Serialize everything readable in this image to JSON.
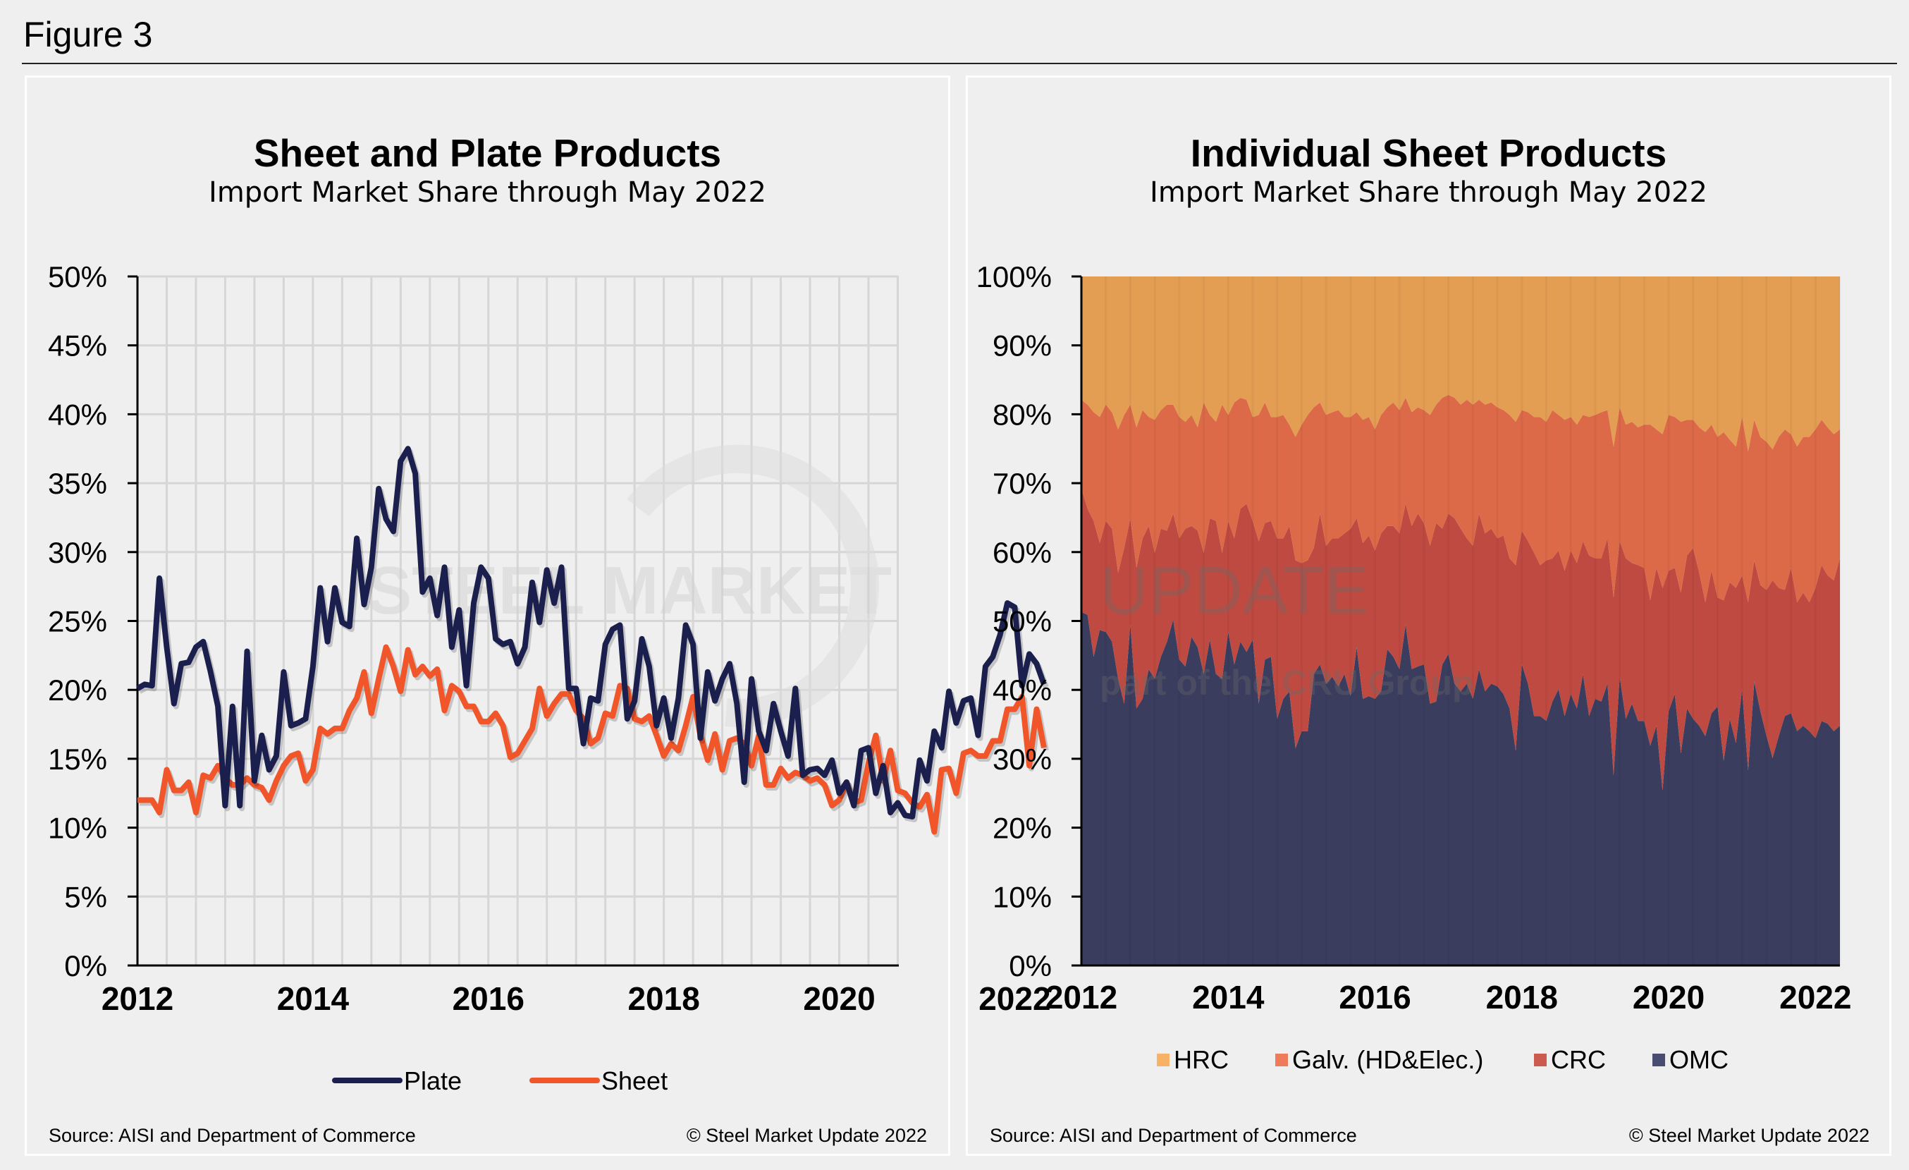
{
  "figure_title": "Figure 3",
  "watermark": {
    "main": "STEEL MARKET UPDATE",
    "sub": "part of the CRU Group"
  },
  "colors": {
    "plate": "#1b1f4d",
    "sheet": "#f0562a",
    "HRC": "#e49e53",
    "Galv": "#dc6a48",
    "CRC": "#bf4a41",
    "OMC": "#3b3d5f",
    "HRC_legend": "#f7b266",
    "Galv_legend": "#ee7c5a",
    "CRC_legend": "#cd5a4e",
    "OMC_legend": "#4a4d72"
  },
  "left_panel": {
    "source": "Source: AISI and Department of Commerce",
    "copyright": "© Steel Market Update 2022"
  },
  "right_panel": {
    "source": "Source: AISI and Department of Commerce",
    "copyright": "© Steel Market Update 2022"
  },
  "chart_data": [
    {
      "type": "line",
      "title": "Sheet and Plate Products",
      "subtitle": "Import Market Share through May 2022",
      "x_start": "2012-01",
      "x_end": "2022-05",
      "x_frequency": "monthly",
      "x_tick_labels": [
        "2012",
        "2014",
        "2016",
        "2018",
        "2020",
        "2022"
      ],
      "y_tick_labels": [
        "0%",
        "5%",
        "10%",
        "15%",
        "20%",
        "25%",
        "30%",
        "35%",
        "40%",
        "45%",
        "50%"
      ],
      "ylim": [
        0,
        50
      ],
      "y_unit": "%",
      "grid": "on",
      "legend": "bottom",
      "series": [
        {
          "name": "Plate",
          "values": [
            20.1,
            20.4,
            20.3,
            28.1,
            23.1,
            19,
            21.9,
            22,
            23.1,
            23.5,
            21.3,
            18.8,
            11.6,
            18.8,
            11.6,
            22.8,
            13.4,
            16.7,
            14.2,
            15.2,
            21.3,
            17.4,
            17.6,
            17.9,
            21.7,
            27.4,
            23.5,
            27.4,
            24.9,
            24.6,
            31,
            26.2,
            28.9,
            34.6,
            32.4,
            31.5,
            36.6,
            37.5,
            35.7,
            27.1,
            28.1,
            25.4,
            28.9,
            23.1,
            25.8,
            20.3,
            26.3,
            28.9,
            28.1,
            23.7,
            23.3,
            23.5,
            21.9,
            23.1,
            27.8,
            24.9,
            28.7,
            26.3,
            28.9,
            20.1,
            20.1,
            16.1,
            19.4,
            19.2,
            23.3,
            24.4,
            24.7,
            17.9,
            19.2,
            23.7,
            21.7,
            17.4,
            19.4,
            16.5,
            19.4,
            24.7,
            23.3,
            16.5,
            21.3,
            19.2,
            20.8,
            21.9,
            19,
            13.3,
            20.8,
            17,
            15.6,
            19,
            17,
            15.2,
            20.1,
            13.8,
            14.2,
            14.3,
            13.8,
            14.9,
            12.5,
            13.3,
            11.6,
            15.6,
            15.8,
            12.5,
            14.5,
            11.1,
            11.8,
            10.9,
            10.8,
            14.9,
            13.4,
            17,
            15.8,
            19.9,
            17.6,
            19.2,
            19.4,
            16.7,
            21.7,
            22.4,
            24,
            26.3,
            26,
            20.3,
            22.6,
            21.9,
            20.4
          ]
        },
        {
          "name": "Sheet",
          "values": [
            12,
            12,
            12,
            11.1,
            14.2,
            12.7,
            12.7,
            13.3,
            11.1,
            13.8,
            13.6,
            14.5,
            13.6,
            13.1,
            13.1,
            13.6,
            13.1,
            12.9,
            12,
            13.4,
            14.5,
            15.2,
            15.4,
            13.4,
            14.2,
            17.2,
            16.8,
            17.2,
            17.2,
            18.5,
            19.4,
            21.3,
            18.3,
            20.8,
            23.1,
            21.7,
            19.9,
            22.9,
            21.1,
            21.7,
            21,
            21.5,
            18.5,
            20.3,
            19.9,
            18.8,
            18.8,
            17.7,
            17.7,
            18.3,
            17.4,
            15.1,
            15.4,
            16.3,
            17.2,
            20.1,
            18.1,
            19,
            19.7,
            19.7,
            18.5,
            17.9,
            16.1,
            16.5,
            18.3,
            18.1,
            20.3,
            20.1,
            17.9,
            17.7,
            18.1,
            16.7,
            15.2,
            16.1,
            15.6,
            17.4,
            19.5,
            16.7,
            14.9,
            16.8,
            14.2,
            16.3,
            16.5,
            16.1,
            14.5,
            16.7,
            13.1,
            13.1,
            14.3,
            13.6,
            14,
            13.8,
            13.4,
            13.6,
            13.1,
            11.6,
            12,
            13.3,
            11.8,
            12,
            14.7,
            16.7,
            13.4,
            15.6,
            12.7,
            12.5,
            11.8,
            11.5,
            12.4,
            9.7,
            14.2,
            14.3,
            12.5,
            15.4,
            15.6,
            15.2,
            15.2,
            16.3,
            16.3,
            18.6,
            18.6,
            19.5,
            14.5,
            18.6,
            15.8
          ]
        }
      ]
    },
    {
      "type": "area",
      "stacked": true,
      "title": "Individual Sheet Products",
      "subtitle": "Import Market Share through May 2022",
      "x_start": "2012-01",
      "x_end": "2022-05",
      "x_frequency": "monthly",
      "x_tick_labels": [
        "2012",
        "2014",
        "2016",
        "2018",
        "2020",
        "2022"
      ],
      "y_tick_labels": [
        "0%",
        "10%",
        "20%",
        "30%",
        "40%",
        "50%",
        "60%",
        "70%",
        "80%",
        "90%",
        "100%"
      ],
      "ylim": [
        0,
        100
      ],
      "y_unit": "%",
      "legend": "bottom",
      "legend_order": [
        "HRC",
        "Galv. (HD&Elec.)",
        "CRC",
        "OMC"
      ],
      "series": [
        {
          "name": "OMC",
          "values": [
            51.3,
            50.9,
            44.8,
            48.7,
            48.4,
            47,
            41.6,
            38,
            49.5,
            37.3,
            38.7,
            43,
            41.6,
            44.8,
            47,
            50.2,
            44.4,
            43.4,
            47.7,
            46.2,
            42.3,
            47.3,
            42.3,
            41.6,
            48.4,
            43.7,
            47,
            45.5,
            47.3,
            38,
            44.4,
            44.8,
            35.8,
            38.7,
            39.8,
            31.5,
            34,
            34,
            42.3,
            43.7,
            40.9,
            41.9,
            40.5,
            42.3,
            39.1,
            46.2,
            38.7,
            39.1,
            38.7,
            39.8,
            45.9,
            44.8,
            43,
            49.5,
            43,
            43.4,
            43.7,
            38,
            38.3,
            43.7,
            45.2,
            40.9,
            39.8,
            40.9,
            38.7,
            43,
            39.8,
            40.9,
            40.5,
            39.4,
            37.3,
            31.2,
            43.7,
            40.9,
            36.2,
            36.2,
            35.5,
            38.3,
            40.1,
            36.2,
            39.4,
            37.3,
            42.3,
            36.2,
            38.7,
            38.3,
            40.9,
            27.6,
            41.9,
            35.8,
            38,
            35.5,
            35.5,
            31.9,
            34.8,
            25.4,
            36.9,
            39.4,
            30.8,
            37.3,
            35.8,
            34.8,
            33.3,
            36.6,
            37.6,
            29.7,
            35.8,
            32.3,
            40.1,
            28.3,
            41.2,
            36.9,
            33.3,
            30.1,
            33.3,
            36.2,
            36.6,
            34,
            34.8,
            34,
            33,
            35.5,
            35.1,
            34,
            34.8
          ]
        },
        {
          "name": "CRC",
          "values": [
            17.9,
            15.4,
            19.7,
            12.6,
            16.1,
            16.4,
            15.4,
            22.6,
            15.4,
            20.4,
            23.3,
            20.8,
            18.3,
            18.6,
            16.1,
            15.4,
            17.6,
            20,
            16.1,
            16.9,
            17.6,
            17.6,
            22.2,
            18.3,
            16.1,
            18.3,
            19.3,
            21.5,
            17.2,
            23.6,
            19.8,
            19.7,
            26.2,
            23.3,
            24,
            27.3,
            24.4,
            24.8,
            18.3,
            21.9,
            20,
            20.1,
            21.5,
            20.4,
            24.3,
            18.7,
            22.6,
            23.3,
            21.5,
            22.9,
            17.9,
            19,
            19.7,
            17.5,
            20.8,
            22.2,
            20.5,
            22.9,
            25.9,
            19.7,
            20.4,
            24,
            23.6,
            21.1,
            22.2,
            22.6,
            22.9,
            22.5,
            21.5,
            23,
            21.8,
            26.9,
            19.4,
            20.7,
            23.7,
            21.9,
            23.3,
            20.8,
            20.1,
            21.1,
            20.8,
            21.1,
            19.3,
            23.3,
            20.4,
            20.8,
            21.1,
            25.8,
            19.7,
            23.3,
            20.4,
            22.6,
            22.2,
            21.1,
            22.9,
            29.4,
            20.4,
            18.3,
            23.3,
            22.2,
            24.8,
            22.2,
            19.4,
            20.7,
            15.8,
            23.3,
            19.8,
            22.5,
            16.5,
            24.4,
            17.6,
            18.3,
            21.2,
            25.8,
            21.5,
            18.3,
            21.1,
            18.7,
            19.3,
            18.7,
            21.8,
            22.6,
            21.5,
            21.9,
            24.3
          ]
        },
        {
          "name": "Galv. (HD&Elec.)",
          "values": [
            12.9,
            15.1,
            15.8,
            18.3,
            16.9,
            16.9,
            20.8,
            19.3,
            16.5,
            20.4,
            18.6,
            15.8,
            19.3,
            17.2,
            18.3,
            15.8,
            17.6,
            15.5,
            16.1,
            15,
            21.8,
            15,
            14.4,
            21.5,
            15.4,
            19.7,
            16.1,
            15.1,
            15.1,
            18.3,
            17.5,
            15.1,
            17.6,
            17.9,
            14.7,
            17.9,
            20.1,
            21.1,
            20.4,
            16.1,
            19,
            18.3,
            18.6,
            16.9,
            16.2,
            15.4,
            17.9,
            17.2,
            17.6,
            17.2,
            17.2,
            17.9,
            17.9,
            15.4,
            16.5,
            15.4,
            16.4,
            19,
            17.2,
            19,
            17.2,
            17.5,
            18,
            20.1,
            20.5,
            16.5,
            18.7,
            18.3,
            19,
            18.2,
            20.8,
            20.8,
            17.5,
            18.7,
            19.7,
            21.5,
            20.1,
            21.5,
            19.7,
            21.9,
            19.4,
            20.1,
            18.3,
            20.1,
            20.8,
            21.2,
            18.6,
            21.9,
            19.4,
            19.4,
            20.5,
            20,
            20.8,
            25.5,
            20.1,
            22.3,
            22.6,
            21.9,
            24.8,
            19.7,
            18.6,
            21.1,
            24.7,
            21.2,
            23.3,
            24.4,
            20.7,
            20.5,
            23,
            21.9,
            20.4,
            21.5,
            21.5,
            19,
            21.9,
            23.3,
            19.4,
            22.6,
            22.6,
            24,
            23,
            21.1,
            21.5,
            21.2,
            18.7
          ]
        },
        {
          "name": "HRC",
          "values": [
            17.9,
            18.6,
            19.7,
            20.4,
            18.6,
            19.7,
            22.2,
            20.1,
            18.6,
            21.9,
            19.4,
            20.4,
            20.8,
            19.4,
            18.6,
            18.6,
            20.4,
            21.1,
            20.1,
            21.9,
            18.3,
            20.1,
            21.1,
            18.6,
            20.1,
            18.3,
            17.6,
            17.9,
            20.4,
            20.1,
            18.3,
            20.4,
            20.4,
            20.1,
            21.5,
            23.3,
            21.5,
            20.1,
            19,
            18.3,
            20.1,
            19.7,
            19.4,
            20.4,
            20.4,
            19.7,
            20.8,
            20.4,
            22.2,
            20.1,
            19,
            18.3,
            19.4,
            17.6,
            19.7,
            19,
            19.4,
            20.1,
            18.6,
            17.6,
            17.2,
            17.6,
            18.6,
            17.9,
            18.6,
            17.9,
            18.6,
            18.3,
            19,
            19.4,
            20.1,
            21.1,
            19.4,
            19.7,
            20.4,
            20.4,
            21.1,
            19.4,
            20.1,
            20.8,
            20.4,
            21.5,
            20.1,
            20.4,
            20.1,
            19.7,
            19.4,
            24.7,
            19,
            21.5,
            21.1,
            21.9,
            21.5,
            21.5,
            22.2,
            22.9,
            20.1,
            20.4,
            21.1,
            20.8,
            20.8,
            21.9,
            22.6,
            21.5,
            23.3,
            22.6,
            23.7,
            24.7,
            20.4,
            25.4,
            20.8,
            23.3,
            24,
            25.1,
            23.3,
            22.2,
            22.9,
            24.7,
            23.3,
            23.3,
            22.2,
            20.8,
            21.9,
            22.9,
            22.2
          ]
        }
      ]
    }
  ]
}
